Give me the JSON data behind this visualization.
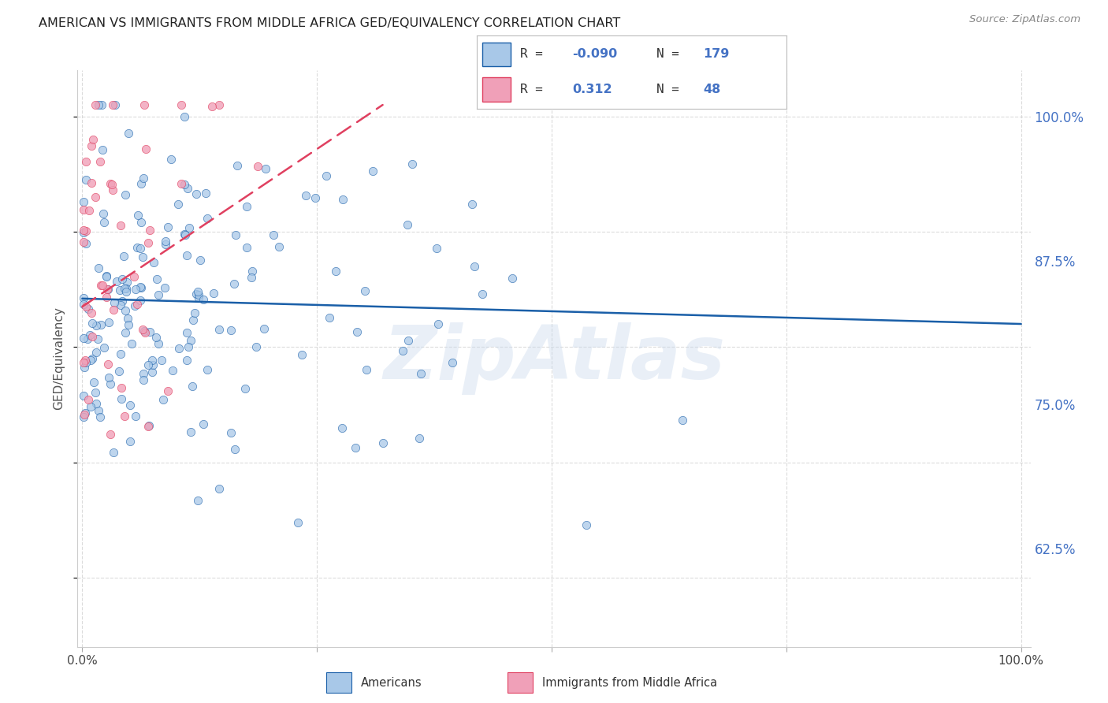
{
  "title": "AMERICAN VS IMMIGRANTS FROM MIDDLE AFRICA GED/EQUIVALENCY CORRELATION CHART",
  "source": "Source: ZipAtlas.com",
  "ylabel": "GED/Equivalency",
  "ytick_labels": [
    "100.0%",
    "87.5%",
    "75.0%",
    "62.5%"
  ],
  "ytick_values": [
    1.0,
    0.875,
    0.75,
    0.625
  ],
  "R_blue": "-0.090",
  "N_blue": "179",
  "R_pink": "0.312",
  "N_pink": "48",
  "blue_scatter_color": "#a8c8e8",
  "pink_scatter_color": "#f0a0b8",
  "trend_blue_color": "#1a5fa8",
  "trend_pink_color": "#e04060",
  "grid_color": "#cccccc",
  "background_color": "#ffffff",
  "watermark": "ZipAtlas",
  "watermark_color": "#c8d8ec",
  "ytick_color": "#4472c4",
  "legend_border_color": "#cccccc",
  "legend_blue_box": "#a8c8e8",
  "legend_pink_box": "#f0a0b8",
  "bottom_legend_blue": "#a8c8e8",
  "bottom_legend_pink": "#f0a0b8",
  "title_color": "#222222",
  "source_color": "#888888",
  "ylabel_color": "#555555",
  "xlim": [
    -0.005,
    1.01
  ],
  "ylim": [
    0.54,
    1.04
  ],
  "fig_w": 14.06,
  "fig_h": 8.92,
  "dpi": 100
}
